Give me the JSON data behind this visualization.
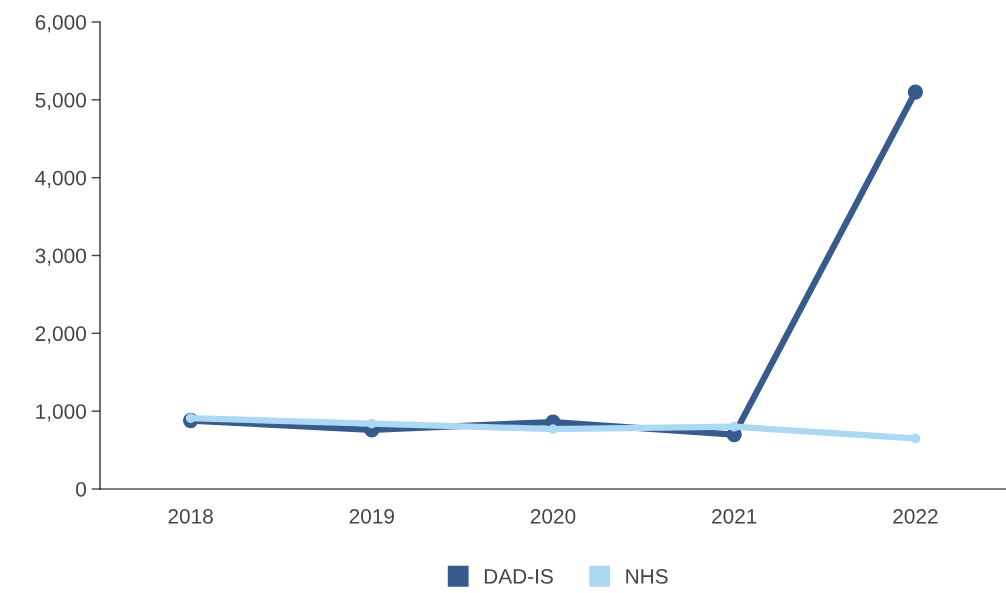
{
  "chart_data": {
    "type": "line",
    "categories": [
      "2018",
      "2019",
      "2020",
      "2021",
      "2022"
    ],
    "series": [
      {
        "name": "DAD-IS",
        "color": "#375b8c",
        "values": [
          880,
          760,
          860,
          700,
          5100
        ]
      },
      {
        "name": "NHS",
        "color": "#acd8f4",
        "values": [
          910,
          840,
          770,
          800,
          650
        ]
      }
    ],
    "ylim": [
      0,
      6000
    ],
    "yticks": [
      {
        "value": 0,
        "label": "0"
      },
      {
        "value": 1000,
        "label": "1,000"
      },
      {
        "value": 2000,
        "label": "2,000"
      },
      {
        "value": 3000,
        "label": "3,000"
      },
      {
        "value": 4000,
        "label": "4,000"
      },
      {
        "value": 5000,
        "label": "5,000"
      },
      {
        "value": 6000,
        "label": "6,000"
      }
    ],
    "marker": "circle",
    "line_style": "solid",
    "grid": false,
    "legend": "bottom"
  }
}
